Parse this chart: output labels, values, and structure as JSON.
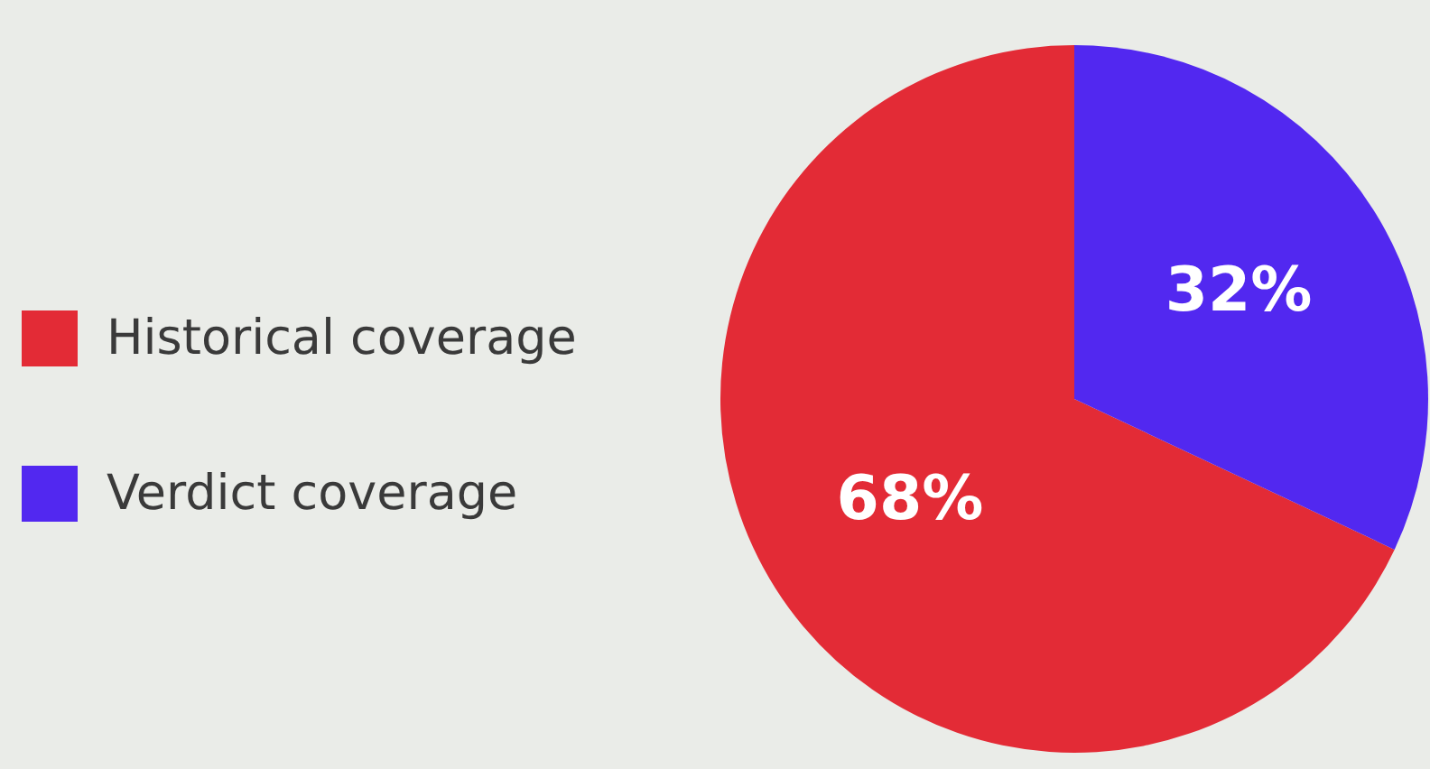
{
  "chart_data": {
    "type": "pie",
    "categories": [
      "Historical coverage",
      "Verdict coverage"
    ],
    "values": [
      68,
      32
    ],
    "colors": [
      "#e32b36",
      "#5228f0"
    ],
    "value_labels": [
      "68%",
      "32%"
    ],
    "legend": "left"
  }
}
